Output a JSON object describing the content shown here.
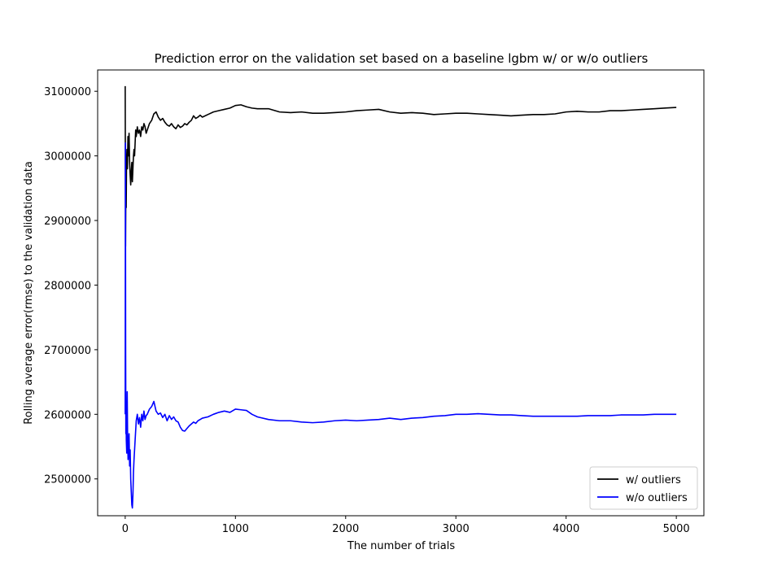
{
  "chart_data": {
    "type": "line",
    "title": "Prediction error on the validation set based on a baseline lgbm w/ or w/o outliers",
    "xlabel": "The number of trials",
    "ylabel": "Rolling average error(rmse) to the validation data",
    "xlim": [
      -250,
      5250
    ],
    "ylim": [
      2443000,
      3133000
    ],
    "xticks": [
      0,
      1000,
      2000,
      3000,
      4000,
      5000
    ],
    "yticks": [
      2500000,
      2600000,
      2700000,
      2800000,
      2900000,
      3000000,
      3100000
    ],
    "grid": false,
    "legend_position": "lower-right",
    "series": [
      {
        "name": "w/ outliers",
        "color": "#000000",
        "x": [
          0,
          3,
          6,
          9,
          12,
          16,
          20,
          25,
          30,
          35,
          40,
          45,
          50,
          55,
          60,
          65,
          70,
          75,
          80,
          85,
          90,
          95,
          100,
          110,
          120,
          130,
          140,
          150,
          160,
          170,
          180,
          190,
          200,
          220,
          240,
          260,
          280,
          300,
          320,
          340,
          360,
          380,
          400,
          420,
          440,
          460,
          480,
          500,
          520,
          540,
          560,
          580,
          600,
          620,
          640,
          660,
          680,
          700,
          750,
          800,
          850,
          900,
          950,
          1000,
          1050,
          1100,
          1150,
          1200,
          1300,
          1400,
          1500,
          1600,
          1700,
          1800,
          1900,
          2000,
          2100,
          2200,
          2300,
          2400,
          2500,
          2600,
          2700,
          2800,
          2900,
          3000,
          3100,
          3200,
          3300,
          3400,
          3500,
          3600,
          3700,
          3800,
          3900,
          4000,
          4100,
          4200,
          4300,
          4400,
          4500,
          4600,
          4700,
          4800,
          4900,
          5000
        ],
        "y": [
          3108000,
          2860000,
          2950000,
          2920000,
          2990000,
          3010000,
          2980000,
          3030000,
          3000000,
          3035000,
          2990000,
          2970000,
          2955000,
          2975000,
          2990000,
          2960000,
          2980000,
          3000000,
          3010000,
          3000000,
          3020000,
          3040000,
          3030000,
          3045000,
          3035000,
          3040000,
          3030000,
          3045000,
          3040000,
          3050000,
          3045000,
          3035000,
          3040000,
          3050000,
          3055000,
          3065000,
          3068000,
          3060000,
          3055000,
          3058000,
          3052000,
          3048000,
          3046000,
          3050000,
          3045000,
          3042000,
          3048000,
          3044000,
          3046000,
          3050000,
          3048000,
          3052000,
          3055000,
          3062000,
          3058000,
          3060000,
          3063000,
          3060000,
          3064000,
          3068000,
          3070000,
          3072000,
          3074000,
          3078000,
          3079000,
          3076000,
          3074000,
          3073000,
          3073000,
          3068000,
          3067000,
          3068000,
          3066000,
          3066000,
          3067000,
          3068000,
          3070000,
          3071000,
          3072000,
          3068000,
          3066000,
          3067000,
          3066000,
          3064000,
          3065000,
          3066000,
          3066000,
          3065000,
          3064000,
          3063000,
          3062000,
          3063000,
          3064000,
          3064000,
          3065000,
          3068000,
          3069000,
          3068000,
          3068000,
          3070000,
          3070000,
          3071000,
          3072000,
          3073000,
          3074000,
          3075000
        ]
      },
      {
        "name": "w/o outliers",
        "color": "#0000ff",
        "x": [
          0,
          2,
          4,
          6,
          8,
          10,
          14,
          18,
          22,
          26,
          30,
          35,
          40,
          45,
          50,
          55,
          60,
          65,
          70,
          75,
          80,
          85,
          90,
          95,
          100,
          110,
          120,
          130,
          140,
          150,
          160,
          170,
          180,
          190,
          200,
          220,
          240,
          260,
          280,
          300,
          320,
          340,
          360,
          380,
          400,
          420,
          440,
          460,
          480,
          500,
          520,
          540,
          560,
          580,
          600,
          620,
          640,
          660,
          680,
          700,
          750,
          800,
          850,
          900,
          950,
          1000,
          1050,
          1100,
          1150,
          1200,
          1300,
          1400,
          1500,
          1600,
          1700,
          1800,
          1900,
          2000,
          2100,
          2200,
          2300,
          2400,
          2500,
          2600,
          2700,
          2800,
          2900,
          3000,
          3100,
          3200,
          3300,
          3400,
          3500,
          3600,
          3700,
          3800,
          3900,
          4000,
          4100,
          4200,
          4300,
          4400,
          4500,
          4600,
          4700,
          4800,
          4900,
          5000
        ],
        "y": [
          2600000,
          3020000,
          2700000,
          2570000,
          2620000,
          2560000,
          2540000,
          2635000,
          2560000,
          2530000,
          2555000,
          2570000,
          2520000,
          2545000,
          2500000,
          2480000,
          2460000,
          2455000,
          2475000,
          2510000,
          2530000,
          2545000,
          2560000,
          2575000,
          2590000,
          2600000,
          2585000,
          2595000,
          2580000,
          2600000,
          2590000,
          2605000,
          2592000,
          2598000,
          2600000,
          2608000,
          2612000,
          2620000,
          2605000,
          2600000,
          2602000,
          2595000,
          2600000,
          2590000,
          2598000,
          2592000,
          2596000,
          2590000,
          2588000,
          2580000,
          2575000,
          2574000,
          2578000,
          2582000,
          2585000,
          2588000,
          2586000,
          2590000,
          2592000,
          2594000,
          2596000,
          2600000,
          2603000,
          2605000,
          2603000,
          2608000,
          2607000,
          2606000,
          2600000,
          2596000,
          2592000,
          2590000,
          2590000,
          2588000,
          2587000,
          2588000,
          2590000,
          2591000,
          2590000,
          2591000,
          2592000,
          2594000,
          2592000,
          2594000,
          2595000,
          2597000,
          2598000,
          2600000,
          2600000,
          2601000,
          2600000,
          2599000,
          2599000,
          2598000,
          2597000,
          2597000,
          2597000,
          2597000,
          2597000,
          2598000,
          2598000,
          2598000,
          2599000,
          2599000,
          2599000,
          2600000,
          2600000,
          2600000
        ]
      }
    ]
  }
}
